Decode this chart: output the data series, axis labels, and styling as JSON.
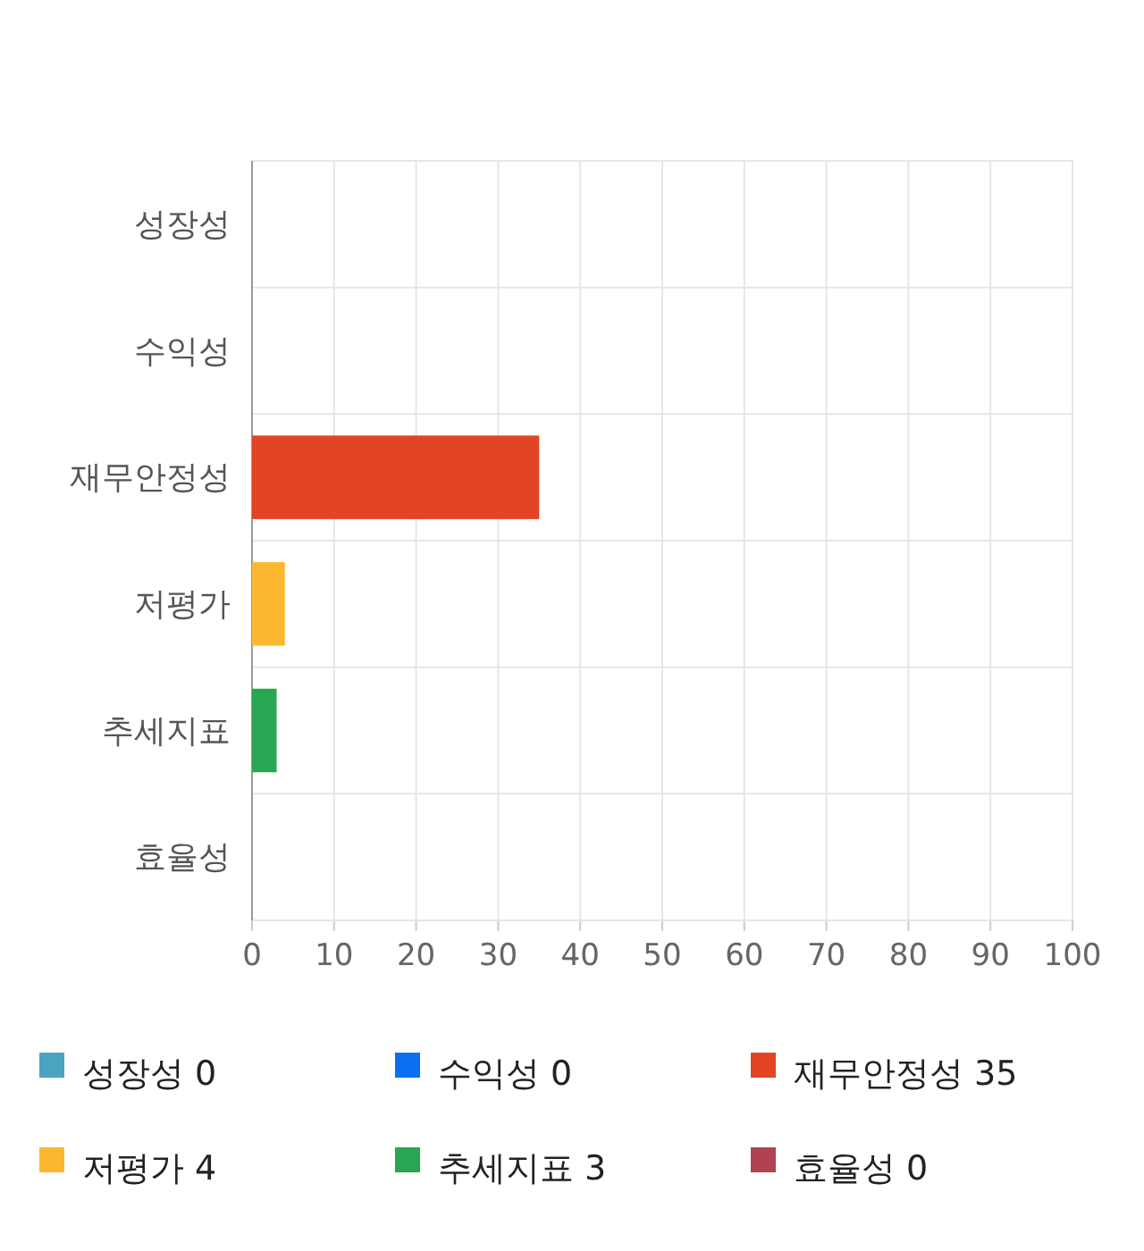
{
  "chart_data": {
    "type": "bar",
    "orientation": "horizontal",
    "categories": [
      "성장성",
      "수익성",
      "재무안정성",
      "저평가",
      "추세지표",
      "효율성"
    ],
    "series": [
      {
        "name": "성장성 0",
        "color": "#4aa3bf",
        "values": [
          0,
          null,
          null,
          null,
          null,
          null
        ]
      },
      {
        "name": "수익성 0",
        "color": "#0a6ff0",
        "values": [
          null,
          0,
          null,
          null,
          null,
          null
        ]
      },
      {
        "name": "재무안정성 35",
        "color": "#e24424",
        "values": [
          null,
          null,
          35,
          null,
          null,
          null
        ]
      },
      {
        "name": "저평가 4",
        "color": "#fbb730",
        "values": [
          null,
          null,
          null,
          4,
          null,
          null
        ]
      },
      {
        "name": "추세지표 3",
        "color": "#28a651",
        "values": [
          null,
          null,
          null,
          null,
          3,
          null
        ]
      },
      {
        "name": "효율성 0",
        "color": "#b04352",
        "values": [
          null,
          null,
          null,
          null,
          null,
          0
        ]
      }
    ],
    "xlim": [
      0,
      100
    ],
    "xticks": [
      0,
      10,
      20,
      30,
      40,
      50,
      60,
      70,
      80,
      90,
      100
    ],
    "grid": true,
    "legend": "bottom"
  }
}
